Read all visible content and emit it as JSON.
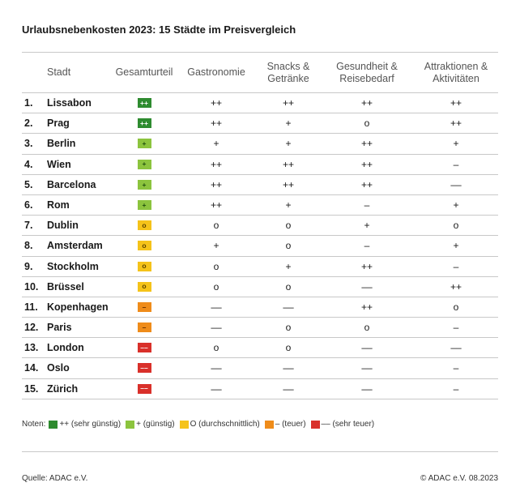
{
  "title": "Urlaubsnebenkosten 2023: 15 Städte im Preisvergleich",
  "chart_data": {
    "type": "table",
    "columns": [
      "",
      "Stadt",
      "Gesamturteil",
      "Gastronomie",
      "Snacks & Getränke",
      "Gesundheit & Reisebedarf",
      "Attraktionen & Aktivitäten"
    ],
    "rows": [
      {
        "rank": "1.",
        "city": "Lissabon",
        "overall": "++",
        "overall_level": "pp",
        "gastronomie": "++",
        "snacks": "++",
        "gesundheit": "++",
        "attraktionen": "++"
      },
      {
        "rank": "2.",
        "city": "Prag",
        "overall": "++",
        "overall_level": "pp",
        "gastronomie": "++",
        "snacks": "+",
        "gesundheit": "o",
        "attraktionen": "++"
      },
      {
        "rank": "3.",
        "city": "Berlin",
        "overall": "+",
        "overall_level": "p",
        "gastronomie": "+",
        "snacks": "+",
        "gesundheit": "++",
        "attraktionen": "+"
      },
      {
        "rank": "4.",
        "city": "Wien",
        "overall": "+",
        "overall_level": "p",
        "gastronomie": "++",
        "snacks": "++",
        "gesundheit": "++",
        "attraktionen": "–"
      },
      {
        "rank": "5.",
        "city": "Barcelona",
        "overall": "+",
        "overall_level": "p",
        "gastronomie": "++",
        "snacks": "++",
        "gesundheit": "++",
        "attraktionen": "––"
      },
      {
        "rank": "6.",
        "city": "Rom",
        "overall": "+",
        "overall_level": "p",
        "gastronomie": "++",
        "snacks": "+",
        "gesundheit": "–",
        "attraktionen": "+"
      },
      {
        "rank": "7.",
        "city": "Dublin",
        "overall": "o",
        "overall_level": "o",
        "gastronomie": "o",
        "snacks": "o",
        "gesundheit": "+",
        "attraktionen": "o"
      },
      {
        "rank": "8.",
        "city": "Amsterdam",
        "overall": "o",
        "overall_level": "o",
        "gastronomie": "+",
        "snacks": "o",
        "gesundheit": "–",
        "attraktionen": "+"
      },
      {
        "rank": "9.",
        "city": "Stockholm",
        "overall": "o",
        "overall_level": "o",
        "gastronomie": "o",
        "snacks": "+",
        "gesundheit": "++",
        "attraktionen": "–"
      },
      {
        "rank": "10.",
        "city": "Brüssel",
        "overall": "o",
        "overall_level": "o",
        "gastronomie": "o",
        "snacks": "o",
        "gesundheit": "––",
        "attraktionen": "++"
      },
      {
        "rank": "11.",
        "city": "Kopenhagen",
        "overall": "–",
        "overall_level": "m",
        "gastronomie": "––",
        "snacks": "––",
        "gesundheit": "++",
        "attraktionen": "o"
      },
      {
        "rank": "12.",
        "city": "Paris",
        "overall": "–",
        "overall_level": "m",
        "gastronomie": "––",
        "snacks": "o",
        "gesundheit": "o",
        "attraktionen": "–"
      },
      {
        "rank": "13.",
        "city": "London",
        "overall": "––",
        "overall_level": "mm",
        "gastronomie": "o",
        "snacks": "o",
        "gesundheit": "––",
        "attraktionen": "––"
      },
      {
        "rank": "14.",
        "city": "Oslo",
        "overall": "––",
        "overall_level": "mm",
        "gastronomie": "––",
        "snacks": "––",
        "gesundheit": "––",
        "attraktionen": "–"
      },
      {
        "rank": "15.",
        "city": "Zürich",
        "overall": "––",
        "overall_level": "mm",
        "gastronomie": "––",
        "snacks": "––",
        "gesundheit": "––",
        "attraktionen": "–"
      }
    ]
  },
  "header": {
    "stadt": "Stadt",
    "gesamturteil": "Gesamturteil",
    "gastronomie": "Gastronomie",
    "snacks": "Snacks &\nGetränke",
    "gesundheit": "Gesundheit &\nReisebedarf",
    "attraktionen": "Attraktionen &\nAktivitäten"
  },
  "legend": {
    "prefix": "Noten:",
    "items": [
      {
        "level": "pp",
        "label": "++ (sehr günstig)",
        "color": "#2e8b2f"
      },
      {
        "level": "p",
        "label": "+ (günstig)",
        "color": "#8cc43e"
      },
      {
        "level": "o",
        "label": "O (durchschnittlich)",
        "color": "#f5c31a"
      },
      {
        "level": "m",
        "label": "– (teuer)",
        "color": "#ef8c1a"
      },
      {
        "level": "mm",
        "label": "–– (sehr teuer)",
        "color": "#d9302a"
      }
    ]
  },
  "footer": {
    "source": "Quelle: ADAC e.V.",
    "copyright": "© ADAC e.V. 08.2023"
  }
}
